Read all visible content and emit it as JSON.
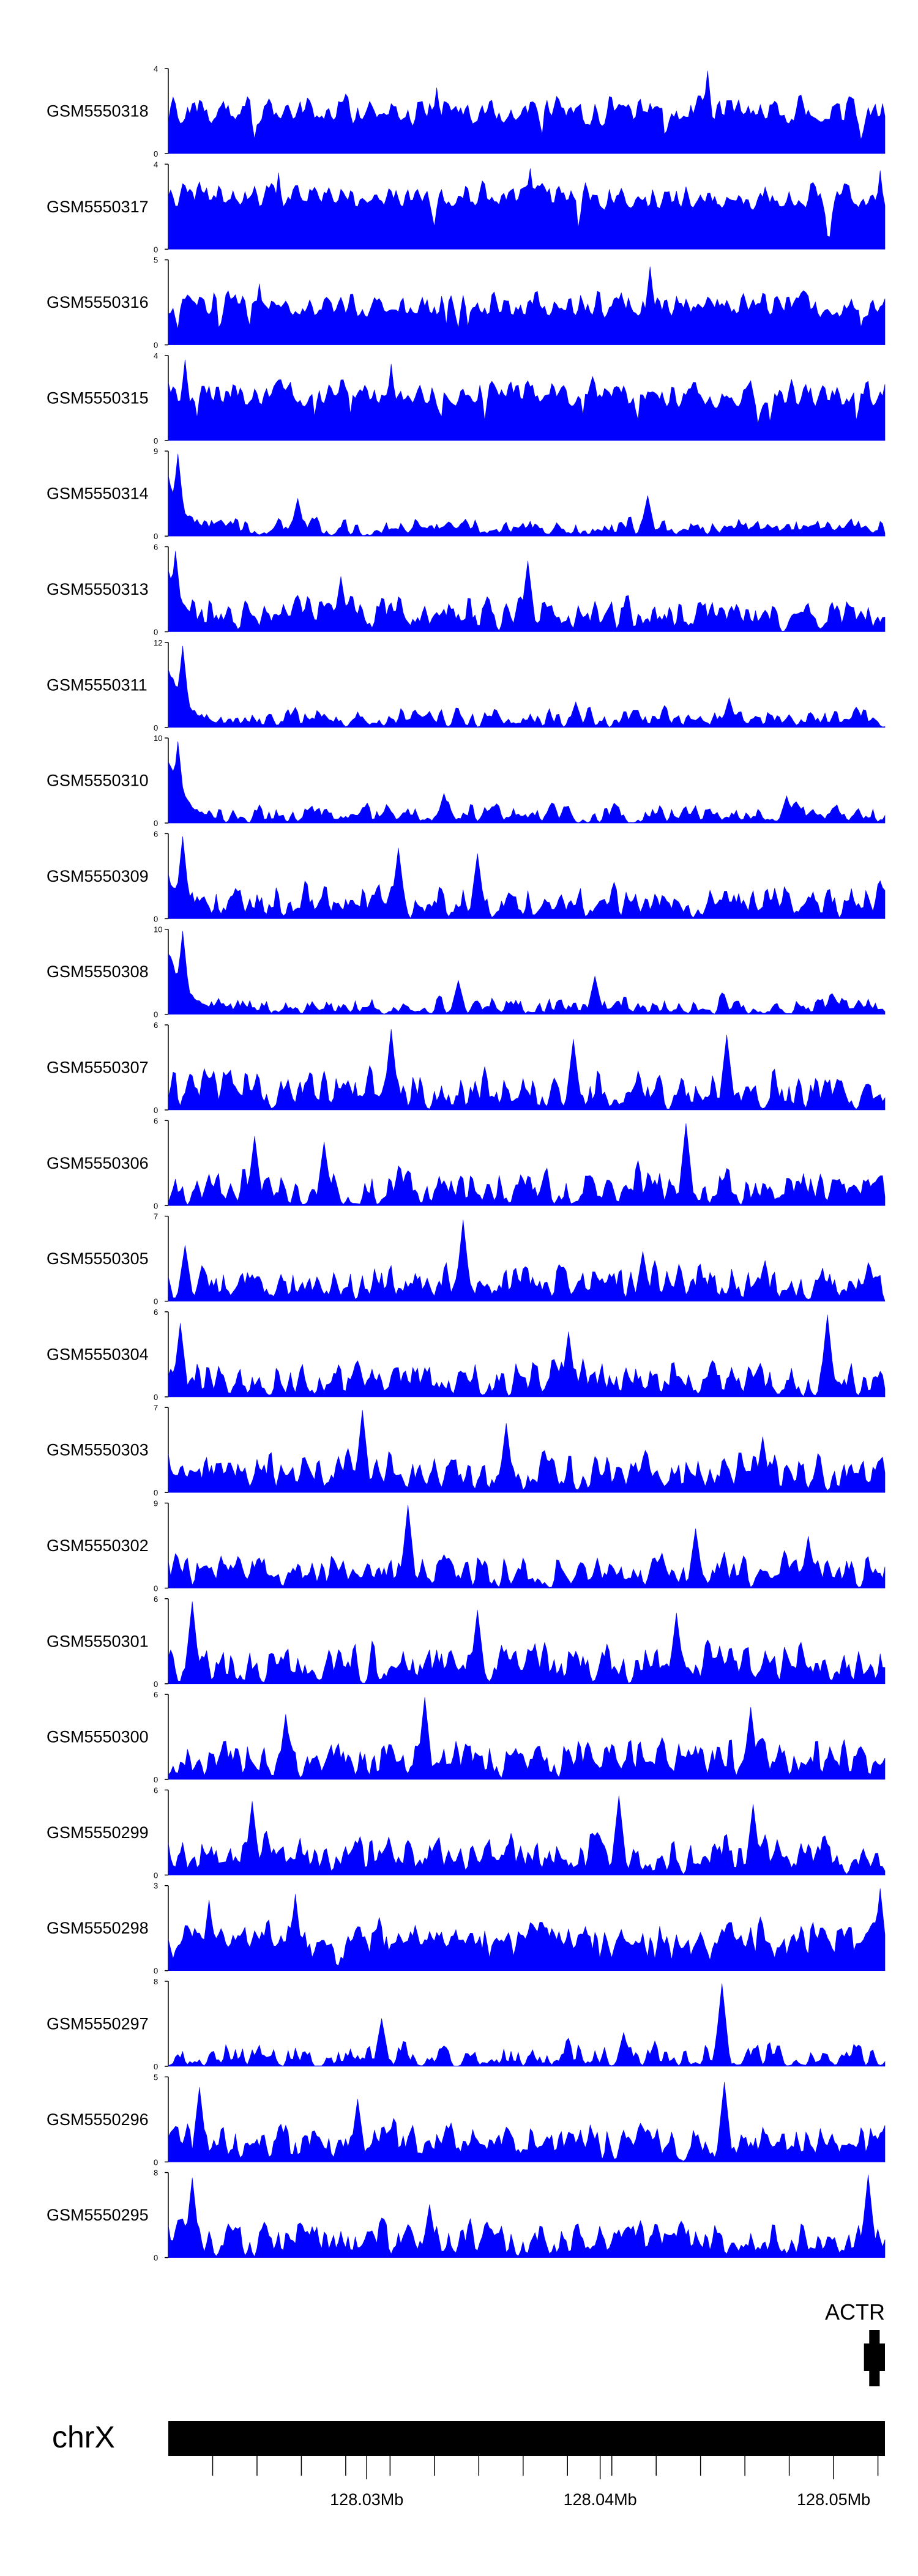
{
  "chart_data": {
    "type": "area",
    "fill_color": "#0000ff",
    "x_range_mb": [
      128.0215,
      128.0522
    ],
    "x_axis": {
      "unit": "Mb",
      "labeled_ticks": [
        {
          "value": 128.03,
          "label": "128.03Mb"
        },
        {
          "value": 128.04,
          "label": "128.04Mb"
        },
        {
          "value": 128.05,
          "label": "128.05Mb"
        }
      ],
      "minor_ticks": [
        128.0234,
        128.0253,
        128.0272,
        128.0291,
        128.031,
        128.0329,
        128.0348,
        128.0367,
        128.0386,
        128.0405,
        128.0424,
        128.0443,
        128.0462,
        128.0481,
        128.0519
      ]
    },
    "chromosome": {
      "label": "chrX"
    },
    "gene": {
      "label": "ACTR",
      "start_mb": 128.0513,
      "end_mb": 128.0522
    },
    "tracks": [
      {
        "name": "GSM5550318",
        "ymax": 4,
        "seed": 318,
        "base": 0.32,
        "spread": 0.42,
        "lead": 0.0,
        "gaps": 0.02,
        "peaks": [
          [
            128.0446,
            3.9
          ],
          [
            128.033,
            3.1
          ]
        ]
      },
      {
        "name": "GSM5550317",
        "ymax": 4,
        "seed": 317,
        "base": 0.45,
        "spread": 0.4,
        "lead": 0.0,
        "gaps": 0.02,
        "peaks": [
          [
            128.037,
            3.8
          ],
          [
            128.052,
            3.7
          ],
          [
            128.0262,
            3.6
          ]
        ]
      },
      {
        "name": "GSM5550316",
        "ymax": 5,
        "seed": 316,
        "base": 0.3,
        "spread": 0.4,
        "lead": 0.0,
        "gaps": 0.02,
        "peaks": [
          [
            128.0421,
            4.6
          ],
          [
            128.0254,
            3.6
          ]
        ]
      },
      {
        "name": "GSM5550315",
        "ymax": 4,
        "seed": 315,
        "base": 0.38,
        "spread": 0.42,
        "lead": 0.0,
        "gaps": 0.03,
        "peaks": [
          [
            128.0222,
            3.8
          ],
          [
            128.031,
            3.6
          ]
        ]
      },
      {
        "name": "GSM5550314",
        "ymax": 9,
        "seed": 314,
        "base": 0.06,
        "spread": 0.22,
        "lead": 0.78,
        "gaps": 0.3,
        "peaks": [
          [
            128.0219,
            8.7
          ],
          [
            128.042,
            4.3
          ],
          [
            128.027,
            4.0
          ]
        ]
      },
      {
        "name": "GSM5550313",
        "ymax": 6,
        "seed": 313,
        "base": 0.14,
        "spread": 0.35,
        "lead": 0.75,
        "gaps": 0.25,
        "peaks": [
          [
            128.0218,
            5.7
          ],
          [
            128.0369,
            5.0
          ],
          [
            128.0289,
            3.9
          ]
        ]
      },
      {
        "name": "GSM5550311",
        "ymax": 12,
        "seed": 311,
        "base": 0.06,
        "spread": 0.22,
        "lead": 0.8,
        "gaps": 0.3,
        "peaks": [
          [
            128.0221,
            11.5
          ],
          [
            128.0455,
            4.2
          ],
          [
            128.039,
            3.6
          ]
        ]
      },
      {
        "name": "GSM5550310",
        "ymax": 10,
        "seed": 310,
        "base": 0.06,
        "spread": 0.22,
        "lead": 0.78,
        "gaps": 0.3,
        "peaks": [
          [
            128.0219,
            9.6
          ],
          [
            128.0333,
            3.5
          ],
          [
            128.048,
            3.2
          ]
        ]
      },
      {
        "name": "GSM5550309",
        "ymax": 6,
        "seed": 309,
        "base": 0.12,
        "spread": 0.4,
        "lead": 0.55,
        "gaps": 0.25,
        "peaks": [
          [
            128.0221,
            5.8
          ],
          [
            128.0314,
            5.0
          ],
          [
            128.0347,
            4.6
          ]
        ]
      },
      {
        "name": "GSM5550308",
        "ymax": 10,
        "seed": 308,
        "base": 0.05,
        "spread": 0.22,
        "lead": 0.85,
        "gaps": 0.4,
        "peaks": [
          [
            128.0221,
            9.8
          ],
          [
            128.0398,
            4.5
          ],
          [
            128.0339,
            4.0
          ]
        ]
      },
      {
        "name": "GSM5550307",
        "ymax": 6,
        "seed": 307,
        "base": 0.12,
        "spread": 0.45,
        "lead": 0.0,
        "gaps": 0.3,
        "peaks": [
          [
            128.031,
            5.7
          ],
          [
            128.0454,
            5.3
          ],
          [
            128.0389,
            5.0
          ]
        ]
      },
      {
        "name": "GSM5550306",
        "ymax": 6,
        "seed": 306,
        "base": 0.12,
        "spread": 0.45,
        "lead": 0.0,
        "gaps": 0.3,
        "peaks": [
          [
            128.0437,
            5.8
          ],
          [
            128.0252,
            4.9
          ],
          [
            128.0282,
            4.5
          ]
        ]
      },
      {
        "name": "GSM5550305",
        "ymax": 7,
        "seed": 305,
        "base": 0.12,
        "spread": 0.42,
        "lead": 0.0,
        "gaps": 0.3,
        "peaks": [
          [
            128.0341,
            6.7
          ],
          [
            128.0222,
            4.6
          ],
          [
            128.0418,
            4.1
          ]
        ]
      },
      {
        "name": "GSM5550304",
        "ymax": 6,
        "seed": 304,
        "base": 0.12,
        "spread": 0.42,
        "lead": 0.0,
        "gaps": 0.3,
        "peaks": [
          [
            128.0497,
            5.8
          ],
          [
            128.022,
            5.2
          ],
          [
            128.0386,
            4.6
          ]
        ]
      },
      {
        "name": "GSM5550303",
        "ymax": 7,
        "seed": 303,
        "base": 0.14,
        "spread": 0.42,
        "lead": 0.0,
        "gaps": 0.25,
        "peaks": [
          [
            128.0298,
            6.8
          ],
          [
            128.036,
            5.7
          ],
          [
            128.047,
            4.6
          ]
        ]
      },
      {
        "name": "GSM5550302",
        "ymax": 9,
        "seed": 302,
        "base": 0.1,
        "spread": 0.4,
        "lead": 0.0,
        "gaps": 0.25,
        "peaks": [
          [
            128.0318,
            8.8
          ],
          [
            128.0441,
            6.3
          ],
          [
            128.0489,
            5.5
          ]
        ]
      },
      {
        "name": "GSM5550301",
        "ymax": 6,
        "seed": 301,
        "base": 0.14,
        "spread": 0.45,
        "lead": 0.0,
        "gaps": 0.25,
        "peaks": [
          [
            128.0225,
            5.8
          ],
          [
            128.0347,
            5.2
          ],
          [
            128.0433,
            5.0
          ]
        ]
      },
      {
        "name": "GSM5550300",
        "ymax": 6,
        "seed": 300,
        "base": 0.14,
        "spread": 0.45,
        "lead": 0.0,
        "gaps": 0.25,
        "peaks": [
          [
            128.0325,
            5.8
          ],
          [
            128.0464,
            5.1
          ],
          [
            128.0265,
            4.6
          ]
        ]
      },
      {
        "name": "GSM5550299",
        "ymax": 6,
        "seed": 299,
        "base": 0.14,
        "spread": 0.45,
        "lead": 0.0,
        "gaps": 0.25,
        "peaks": [
          [
            128.0408,
            5.6
          ],
          [
            128.0251,
            5.2
          ],
          [
            128.0466,
            5.0
          ]
        ]
      },
      {
        "name": "GSM5550298",
        "ymax": 3,
        "seed": 298,
        "base": 0.25,
        "spread": 0.45,
        "lead": 0.0,
        "gaps": 0.08,
        "peaks": [
          [
            128.052,
            2.9
          ],
          [
            128.0269,
            2.7
          ],
          [
            128.0232,
            2.5
          ]
        ]
      },
      {
        "name": "GSM5550297",
        "ymax": 8,
        "seed": 297,
        "base": 0.06,
        "spread": 0.3,
        "lead": 0.0,
        "gaps": 0.45,
        "peaks": [
          [
            128.0452,
            7.8
          ],
          [
            128.0306,
            4.5
          ],
          [
            128.041,
            3.2
          ]
        ]
      },
      {
        "name": "GSM5550296",
        "ymax": 5,
        "seed": 296,
        "base": 0.15,
        "spread": 0.42,
        "lead": 0.0,
        "gaps": 0.22,
        "peaks": [
          [
            128.0453,
            4.7
          ],
          [
            128.0228,
            4.4
          ],
          [
            128.0296,
            3.7
          ]
        ]
      },
      {
        "name": "GSM5550295",
        "ymax": 8,
        "seed": 295,
        "base": 0.12,
        "spread": 0.4,
        "lead": 0.0,
        "gaps": 0.3,
        "peaks": [
          [
            128.0515,
            7.8
          ],
          [
            128.0225,
            7.5
          ],
          [
            128.0327,
            5.0
          ]
        ]
      }
    ]
  }
}
